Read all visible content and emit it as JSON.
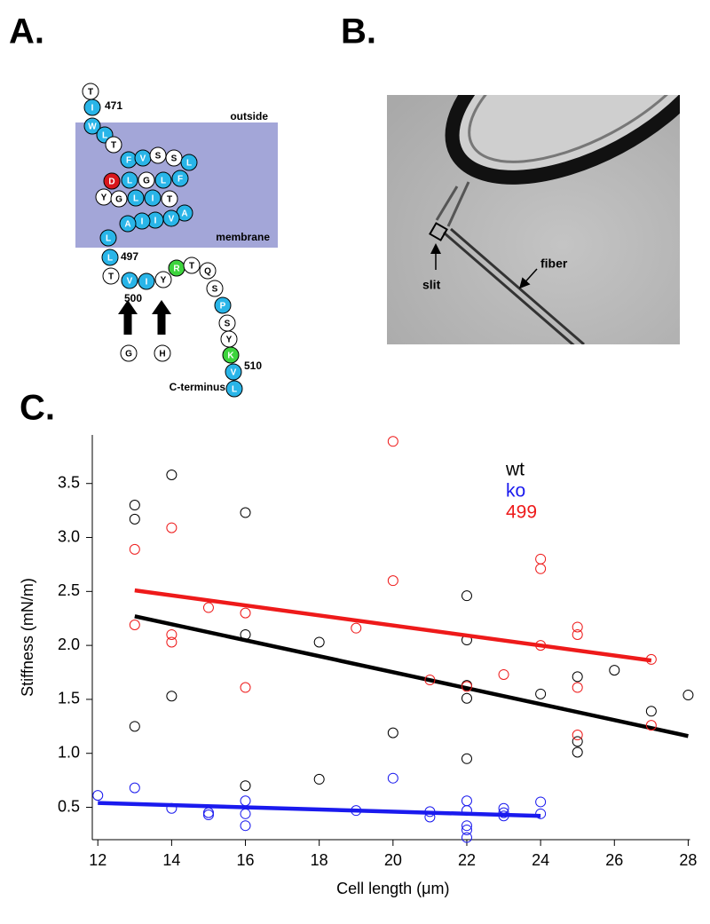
{
  "panel_a": {
    "label": "A.",
    "residues": [
      {
        "letter": "T",
        "color": "#ffffff"
      },
      {
        "letter": "I",
        "color": "#29b5e8"
      },
      {
        "letter": "W",
        "color": "#29b5e8"
      },
      {
        "letter": "L",
        "color": "#29b5e8"
      },
      {
        "letter": "T",
        "color": "#ffffff"
      },
      {
        "letter": "F",
        "color": "#29b5e8"
      },
      {
        "letter": "V",
        "color": "#29b5e8"
      },
      {
        "letter": "S",
        "color": "#ffffff"
      },
      {
        "letter": "S",
        "color": "#ffffff"
      },
      {
        "letter": "L",
        "color": "#29b5e8"
      },
      {
        "letter": "D",
        "color": "#d8161c"
      },
      {
        "letter": "L",
        "color": "#29b5e8"
      },
      {
        "letter": "G",
        "color": "#ffffff"
      },
      {
        "letter": "L",
        "color": "#29b5e8"
      },
      {
        "letter": "F",
        "color": "#29b5e8"
      },
      {
        "letter": "Y",
        "color": "#ffffff"
      },
      {
        "letter": "G",
        "color": "#ffffff"
      },
      {
        "letter": "L",
        "color": "#29b5e8"
      },
      {
        "letter": "I",
        "color": "#29b5e8"
      },
      {
        "letter": "T",
        "color": "#ffffff"
      },
      {
        "letter": "A",
        "color": "#29b5e8"
      },
      {
        "letter": "V",
        "color": "#29b5e8"
      },
      {
        "letter": "I",
        "color": "#29b5e8"
      },
      {
        "letter": "I",
        "color": "#29b5e8"
      },
      {
        "letter": "A",
        "color": "#29b5e8"
      },
      {
        "letter": "L",
        "color": "#29b5e8"
      },
      {
        "letter": "L",
        "color": "#29b5e8"
      },
      {
        "letter": "T",
        "color": "#ffffff"
      },
      {
        "letter": "V",
        "color": "#29b5e8"
      },
      {
        "letter": "I",
        "color": "#29b5e8"
      },
      {
        "letter": "Y",
        "color": "#ffffff"
      },
      {
        "letter": "R",
        "color": "#3dd43d"
      },
      {
        "letter": "T",
        "color": "#ffffff"
      },
      {
        "letter": "Q",
        "color": "#ffffff"
      },
      {
        "letter": "S",
        "color": "#ffffff"
      },
      {
        "letter": "P",
        "color": "#29b5e8"
      },
      {
        "letter": "S",
        "color": "#ffffff"
      },
      {
        "letter": "Y",
        "color": "#ffffff"
      },
      {
        "letter": "K",
        "color": "#3dd43d"
      },
      {
        "letter": "V",
        "color": "#29b5e8"
      },
      {
        "letter": "L",
        "color": "#29b5e8"
      },
      {
        "letter": "G",
        "color": "#ffffff"
      },
      {
        "letter": "H",
        "color": "#ffffff"
      }
    ],
    "labels": [
      "471",
      "outside",
      "membrane",
      "497",
      "500",
      "510",
      "C-terminus"
    ]
  },
  "panel_b": {
    "label": "B.",
    "labels": [
      "slit",
      "fiber"
    ]
  },
  "panel_c": {
    "label": "C."
  },
  "chart_data": {
    "type": "scatter",
    "y_label": "Stiffness (mN/m)",
    "x_label": "Cell length (μm)",
    "xlim": [
      11.85,
      28.05
    ],
    "ylim": [
      0.2,
      3.95
    ],
    "xticks": [
      12,
      14,
      16,
      18,
      20,
      22,
      24,
      26,
      28
    ],
    "yticks": [
      0.5,
      {
        "value": 1,
        "label": "1.0"
      },
      1.5,
      {
        "value": 2,
        "label": "2.0"
      },
      2.5,
      {
        "value": 3,
        "label": "3.0"
      },
      3.5
    ],
    "series": [
      {
        "name": "wt",
        "color": "#000000",
        "x": [
          13,
          13,
          13,
          14,
          14,
          16,
          16,
          16,
          18,
          18,
          20,
          22,
          22,
          22,
          22,
          22,
          24,
          25,
          25,
          25,
          26,
          27,
          28
        ],
        "values": [
          3.3,
          3.17,
          1.25,
          3.58,
          1.53,
          3.23,
          2.1,
          0.7,
          0.76,
          2.03,
          1.19,
          2.46,
          2.05,
          1.63,
          1.51,
          0.95,
          1.55,
          1.71,
          1.11,
          1.01,
          1.77,
          1.39,
          1.54
        ],
        "fit": {
          "x": [
            13,
            28
          ],
          "values": [
            2.27,
            1.16
          ]
        }
      },
      {
        "name": "ko",
        "color": "#1a1aee",
        "x": [
          12,
          13,
          14,
          15,
          15,
          16,
          16,
          16,
          19,
          20,
          21,
          21,
          22,
          22,
          22,
          22,
          22,
          23,
          23,
          23,
          24,
          24
        ],
        "values": [
          0.61,
          0.68,
          0.49,
          0.45,
          0.43,
          0.56,
          0.44,
          0.33,
          0.47,
          0.77,
          0.46,
          0.41,
          0.56,
          0.47,
          0.33,
          0.29,
          0.22,
          0.49,
          0.45,
          0.42,
          0.55,
          0.44
        ],
        "fit": {
          "x": [
            12,
            24
          ],
          "values": [
            0.54,
            0.42
          ]
        }
      },
      {
        "name": "499",
        "color": "#ee1a1a",
        "x": [
          13,
          13,
          14,
          14,
          14,
          15,
          16,
          16,
          19,
          20,
          20,
          21,
          22,
          23,
          24,
          24,
          24,
          25,
          25,
          25,
          25,
          27,
          27
        ],
        "values": [
          2.89,
          2.19,
          3.09,
          2.1,
          2.03,
          2.35,
          2.3,
          1.61,
          2.16,
          3.89,
          2.6,
          1.68,
          1.62,
          1.73,
          2.8,
          2.71,
          2.0,
          2.17,
          2.1,
          1.61,
          1.17,
          1.87,
          1.26
        ],
        "fit": {
          "x": [
            13,
            27
          ],
          "values": [
            2.51,
            1.86
          ]
        }
      }
    ]
  }
}
